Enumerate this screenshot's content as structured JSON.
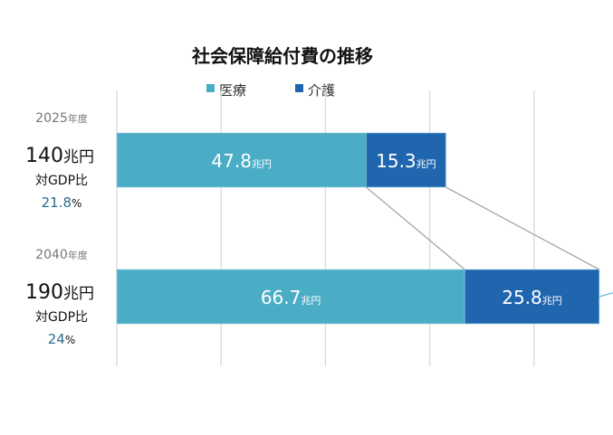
{
  "chart_data": {
    "type": "bar",
    "orientation": "horizontal",
    "stacked": true,
    "title": "社会保障給付費の推移",
    "categories": [
      "2025年度",
      "2040年度"
    ],
    "category_year": [
      "2025",
      "2040"
    ],
    "category_suffix": "年度",
    "series": [
      {
        "name": "医療",
        "color": "#4bacc6",
        "values": [
          47.8,
          66.7
        ],
        "labels": [
          "47.8",
          "66.7"
        ]
      },
      {
        "name": "介護",
        "color": "#1f66ae",
        "values": [
          15.3,
          25.8
        ],
        "labels": [
          "15.3",
          "25.8"
        ]
      }
    ],
    "unit": "兆円",
    "xlim": [
      0,
      92.5
    ],
    "grid_step": 20,
    "grid": true,
    "legend_position": "top",
    "annotations": [
      {
        "total": "140",
        "unit": "兆円",
        "gdp_label": "対GDP比",
        "gdp_value": "21.8",
        "gdp_unit": "%"
      },
      {
        "total": "190",
        "unit": "兆円",
        "gdp_label": "対GDP比",
        "gdp_value": "24",
        "gdp_unit": "%"
      }
    ]
  }
}
